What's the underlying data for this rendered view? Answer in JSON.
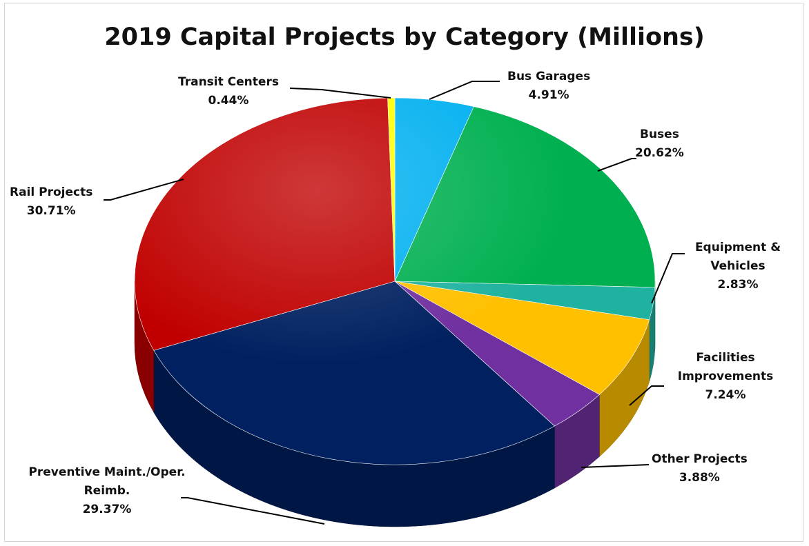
{
  "chart_data": {
    "type": "pie",
    "title": "2019 Capital Projects by Category (Millions)",
    "slices": [
      {
        "name": "Bus Garages",
        "value": 4.91,
        "label": "Bus Garages",
        "pct": "4.91%",
        "color": "#00b0f0"
      },
      {
        "name": "Buses",
        "value": 20.62,
        "label": "Buses",
        "pct": "20.62%",
        "color": "#00b050"
      },
      {
        "name": "Equipment & Vehicles",
        "value": 2.83,
        "label": "Equipment & Vehicles",
        "pct": "2.83%",
        "color": "#20b2a0"
      },
      {
        "name": "Facilities Improvements",
        "value": 7.24,
        "label": "Facilities Improvements",
        "pct": "7.24%",
        "color": "#ffc000"
      },
      {
        "name": "Other Projects",
        "value": 3.88,
        "label": "Other Projects",
        "pct": "3.88%",
        "color": "#7030a0"
      },
      {
        "name": "Preventive Maint./Oper. Reimb.",
        "value": 29.37,
        "label": "Preventive Maint./Oper. Reimb.",
        "pct": "29.37%",
        "color": "#002060"
      },
      {
        "name": "Rail Projects",
        "value": 30.71,
        "label": "Rail Projects",
        "pct": "30.71%",
        "color": "#c00000"
      },
      {
        "name": "Transit Centers",
        "value": 0.44,
        "label": "Transit Centers",
        "pct": "0.44%",
        "color": "#ffff00"
      }
    ]
  }
}
